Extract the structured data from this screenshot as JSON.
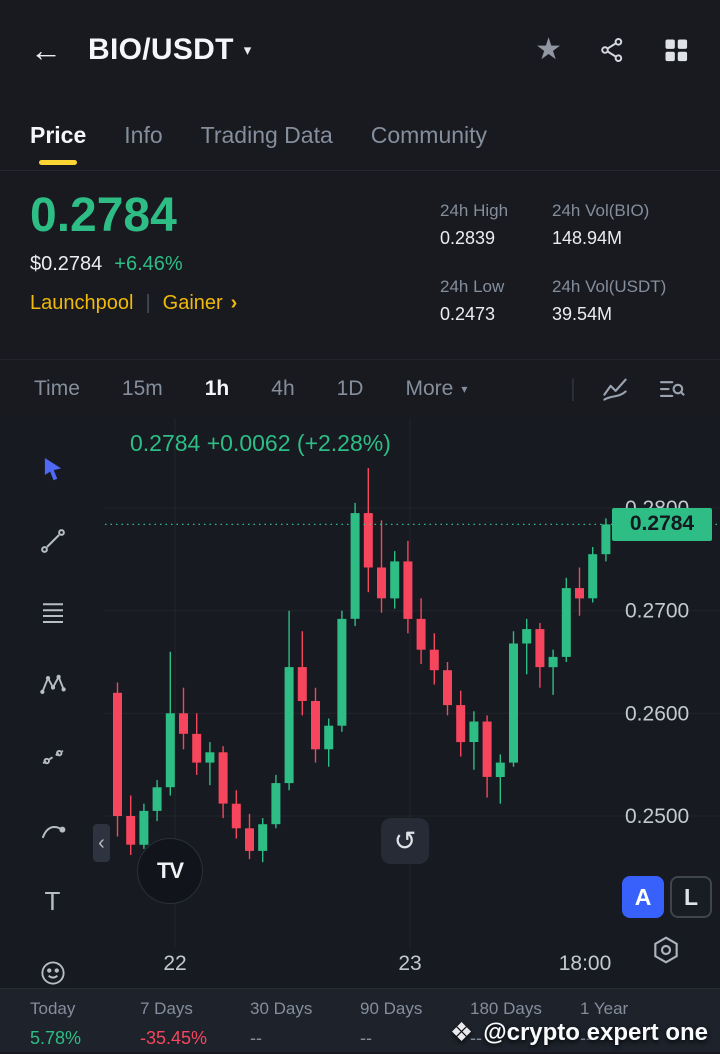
{
  "colors": {
    "green": "#2EBD85",
    "red": "#F6465D",
    "yellow": "#F0B90B",
    "blue": "#3861FB",
    "gray": "#848E9C"
  },
  "icons": {
    "back": "←",
    "caret": "▾",
    "star": "★",
    "more_caret": "▾",
    "collapse": "‹",
    "refresh": "↺",
    "text_tool": "T",
    "tv_logo": "TV",
    "watermark_logo": "❖",
    "tag_arrow": "›",
    "tf_separator": "|",
    "tag_divider": "|"
  },
  "topbar": {
    "title": "BIO/USDT"
  },
  "tabs": [
    {
      "label": "Price"
    },
    {
      "label": "Info"
    },
    {
      "label": "Trading Data"
    },
    {
      "label": "Community"
    }
  ],
  "price": {
    "big": "0.2784",
    "fiat": "$0.2784",
    "change": "+6.46%",
    "tag1": "Launchpool",
    "tag2": "Gainer"
  },
  "stats": [
    {
      "label": "24h High",
      "value": "0.2839"
    },
    {
      "label": "24h Vol(BIO)",
      "value": "148.94M"
    },
    {
      "label": "24h Low",
      "value": "0.2473"
    },
    {
      "label": "24h Vol(USDT)",
      "value": "39.54M"
    }
  ],
  "timeframes": {
    "items": [
      "Time",
      "15m",
      "1h",
      "4h",
      "1D"
    ],
    "active": "1h",
    "more": "More"
  },
  "chart_buttons": {
    "auto": "A",
    "log": "L"
  },
  "chart_data": {
    "type": "candlestick",
    "symbol": "BIO/USDT",
    "interval": "1h",
    "overlay": "0.2784 +0.0062 (+2.28%)",
    "last_price": 0.2784,
    "last_price_label": "0.2784",
    "up_color": "#2EBD85",
    "down_color": "#F6465D",
    "y_axis": {
      "p1": 0.28,
      "y1": 90,
      "p2": 0.25,
      "y2": 398
    },
    "y_ticks": [
      {
        "price": 0.28,
        "label": "0.2800"
      },
      {
        "price": 0.27,
        "label": "0.2700"
      },
      {
        "price": 0.26,
        "label": "0.2600"
      },
      {
        "price": 0.25,
        "label": "0.2500"
      }
    ],
    "x_ticks": [
      {
        "label": "22",
        "x": 70,
        "grid": true
      },
      {
        "label": "23",
        "x": 305,
        "grid": true
      },
      {
        "label": "18:00",
        "x": 480,
        "grid": false
      }
    ],
    "candles": [
      [
        0.262,
        0.263,
        0.248,
        0.25
      ],
      [
        0.25,
        0.252,
        0.2462,
        0.2472
      ],
      [
        0.2472,
        0.2512,
        0.2468,
        0.2505
      ],
      [
        0.2505,
        0.2535,
        0.2495,
        0.2528
      ],
      [
        0.2528,
        0.266,
        0.252,
        0.26
      ],
      [
        0.26,
        0.2625,
        0.2565,
        0.258
      ],
      [
        0.258,
        0.26,
        0.254,
        0.2552
      ],
      [
        0.2552,
        0.2572,
        0.253,
        0.2562
      ],
      [
        0.2562,
        0.2568,
        0.2498,
        0.2512
      ],
      [
        0.2512,
        0.2525,
        0.2478,
        0.2488
      ],
      [
        0.2488,
        0.2502,
        0.2458,
        0.2466
      ],
      [
        0.2466,
        0.2498,
        0.2455,
        0.2492
      ],
      [
        0.2492,
        0.254,
        0.2488,
        0.2532
      ],
      [
        0.2532,
        0.27,
        0.2525,
        0.2645
      ],
      [
        0.2645,
        0.268,
        0.2598,
        0.2612
      ],
      [
        0.2612,
        0.2625,
        0.2552,
        0.2565
      ],
      [
        0.2565,
        0.2595,
        0.2548,
        0.2588
      ],
      [
        0.2588,
        0.27,
        0.2582,
        0.2692
      ],
      [
        0.2692,
        0.2805,
        0.2685,
        0.2795
      ],
      [
        0.2795,
        0.2839,
        0.2718,
        0.2742
      ],
      [
        0.2742,
        0.2788,
        0.2698,
        0.2712
      ],
      [
        0.2712,
        0.2758,
        0.2702,
        0.2748
      ],
      [
        0.2748,
        0.2768,
        0.2678,
        0.2692
      ],
      [
        0.2692,
        0.2712,
        0.2648,
        0.2662
      ],
      [
        0.2662,
        0.2678,
        0.2628,
        0.2642
      ],
      [
        0.2642,
        0.265,
        0.2598,
        0.2608
      ],
      [
        0.2608,
        0.2622,
        0.2558,
        0.2572
      ],
      [
        0.2572,
        0.2602,
        0.2545,
        0.2592
      ],
      [
        0.2592,
        0.2598,
        0.2518,
        0.2538
      ],
      [
        0.2538,
        0.256,
        0.2512,
        0.2552
      ],
      [
        0.2552,
        0.268,
        0.2548,
        0.2668
      ],
      [
        0.2668,
        0.2692,
        0.2638,
        0.2682
      ],
      [
        0.2682,
        0.2688,
        0.2625,
        0.2645
      ],
      [
        0.2645,
        0.2662,
        0.2618,
        0.2655
      ],
      [
        0.2655,
        0.2732,
        0.265,
        0.2722
      ],
      [
        0.2722,
        0.2742,
        0.2695,
        0.2712
      ],
      [
        0.2712,
        0.2762,
        0.2708,
        0.2755
      ],
      [
        0.2755,
        0.279,
        0.2748,
        0.2784
      ]
    ]
  },
  "footer_stats": [
    {
      "label": "Today",
      "value": "5.78%",
      "color": "#2EBD85"
    },
    {
      "label": "7 Days",
      "value": "-35.45%",
      "color": "#F6465D"
    },
    {
      "label": "30 Days",
      "value": "--"
    },
    {
      "label": "90 Days",
      "value": "--"
    },
    {
      "label": "180 Days",
      "value": "--"
    },
    {
      "label": "1 Year",
      "value": "--"
    }
  ],
  "watermark": {
    "text": "@crypto expert one"
  }
}
